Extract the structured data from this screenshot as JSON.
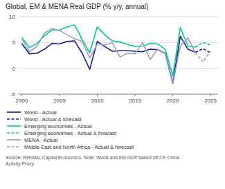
{
  "chart_data": {
    "type": "line",
    "title": "Global, EM & MENA Real GDP (% y/y, annual)",
    "annotations": [
      "Source: Refinitiv, Capital Economics. Note: World and EM GDP based off CE China\nActivity Proxy."
    ],
    "xlim": [
      1999.5,
      2026
    ],
    "xticks": [
      2000,
      2005,
      2010,
      2015,
      2020,
      2025
    ],
    "ylim": [
      -5,
      10
    ],
    "yticks": [
      -5,
      0,
      5,
      10
    ],
    "grid": true,
    "legend": "bottom",
    "series": [
      {
        "name": "World - Actual",
        "color": "#1a1a8c",
        "line_style": "solid",
        "x": [
          2000,
          2001,
          2002,
          2003,
          2004,
          2005,
          2006,
          2007,
          2008,
          2009,
          2010,
          2011,
          2012,
          2013,
          2014,
          2015,
          2016,
          2017,
          2018,
          2019,
          2020,
          2021,
          2022,
          2023
        ],
        "values": [
          4.8,
          2.8,
          2.9,
          3.7,
          4.8,
          4.7,
          5.2,
          5.3,
          2.9,
          -0.2,
          5.2,
          4.2,
          3.3,
          3.4,
          3.4,
          3.3,
          3.2,
          3.7,
          3.6,
          2.9,
          -2.9,
          6.2,
          3.7,
          3.1
        ]
      },
      {
        "name": "World - Actual & forecast",
        "color": "#1a1a8c",
        "line_style": "dashed",
        "x": [
          2023,
          2024,
          2025
        ],
        "values": [
          3.1,
          3.8,
          3.0
        ]
      },
      {
        "name": "Emerging economies - Actual",
        "color": "#00cc88",
        "line_style": "solid",
        "x": [
          2000,
          2001,
          2002,
          2003,
          2004,
          2005,
          2006,
          2007,
          2008,
          2009,
          2010,
          2011,
          2012,
          2013,
          2014,
          2015,
          2016,
          2017,
          2018,
          2019,
          2020,
          2021,
          2022,
          2023
        ],
        "values": [
          6.0,
          4.0,
          4.8,
          6.3,
          7.4,
          7.4,
          8.0,
          8.4,
          5.6,
          3.0,
          8.0,
          6.5,
          5.3,
          5.1,
          4.6,
          4.2,
          4.3,
          4.8,
          4.7,
          3.7,
          -1.5,
          7.9,
          4.3,
          4.1
        ]
      },
      {
        "name": "Emerging economies - Actual & forecast",
        "color": "#00cc88",
        "line_style": "dashed",
        "x": [
          2023,
          2024,
          2025
        ],
        "values": [
          4.1,
          5.0,
          4.5
        ]
      },
      {
        "name": "MENA - Actual",
        "color": "#9999dd",
        "line_style": "solid",
        "x": [
          2000,
          2001,
          2002,
          2003,
          2004,
          2005,
          2006,
          2007,
          2008,
          2009,
          2010,
          2011,
          2012,
          2013,
          2014,
          2015,
          2016,
          2017,
          2018,
          2019,
          2020,
          2021,
          2022,
          2023
        ],
        "values": [
          5.7,
          3.2,
          4.2,
          6.8,
          7.7,
          7.3,
          6.5,
          5.7,
          5.2,
          2.0,
          4.7,
          4.5,
          4.9,
          2.2,
          2.9,
          2.8,
          5.0,
          1.7,
          3.7,
          2.8,
          -3.0,
          4.3,
          5.9,
          3.0
        ]
      },
      {
        "name": "Middle East and North Africa - Actual & forecast",
        "color": "#9999dd",
        "line_style": "dashed",
        "x": [
          2023,
          2024,
          2025
        ],
        "values": [
          3.0,
          1.3,
          3.3
        ]
      }
    ]
  }
}
